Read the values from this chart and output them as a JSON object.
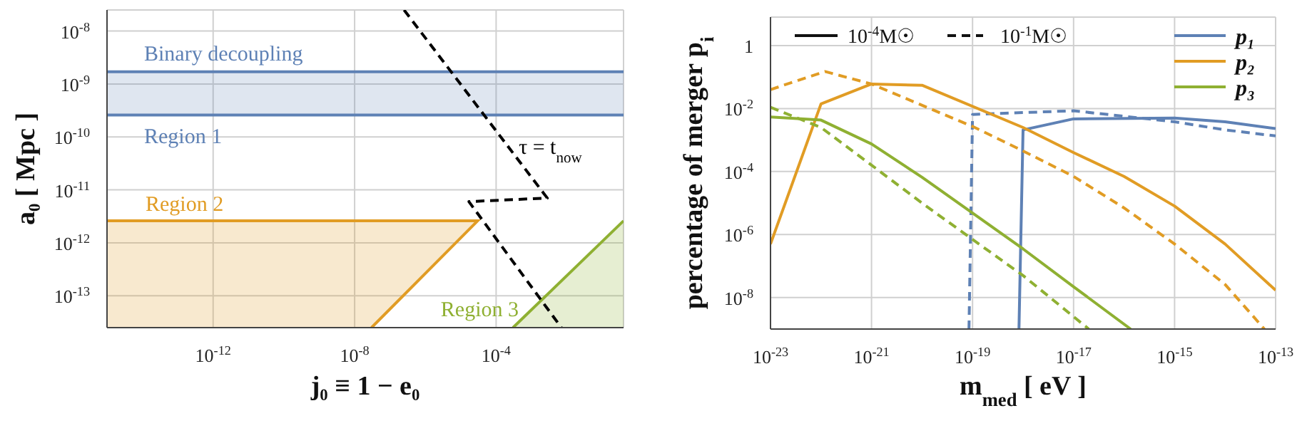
{
  "chart_data": [
    {
      "type": "area",
      "xlabel": "j₀ ≡ 1 − e₀",
      "ylabel": "a₀ [ Mpc ]",
      "log": "xy",
      "grid": true,
      "xlim": [
        1e-15,
        0.4
      ],
      "xticks": [
        {
          "value": 1e-12,
          "label": "10$^{-12}$"
        },
        {
          "value": 1e-08,
          "label": "10$^{-8}$"
        },
        {
          "value": 0.0001,
          "label": "10$^{-4}$"
        }
      ],
      "ylim": [
        2.5e-14,
        2.5e-08
      ],
      "yticks": [
        {
          "value": 1e-08,
          "label": "10$^{-8}$"
        },
        {
          "value": 1e-09,
          "label": "10$^{-9}$"
        },
        {
          "value": 1e-10,
          "label": "10$^{-10}$"
        },
        {
          "value": 1e-11,
          "label": "10$^{-11}$"
        },
        {
          "value": 1e-12,
          "label": "10$^{-12}$"
        },
        {
          "value": 1e-13,
          "label": "10$^{-13}$"
        }
      ],
      "bands": [
        {
          "axis": "y",
          "from": 2.6e-10,
          "to": 1.7e-09,
          "color": "#5e81b5"
        }
      ],
      "ref_lines": [
        {
          "axis": "y",
          "value": 1.7e-09,
          "label": "Binary decoupling",
          "color": "#5e81b5"
        },
        {
          "axis": "y",
          "value": 2.6e-10,
          "label": "Region 1",
          "color": "#5e81b5"
        }
      ],
      "series": [
        {
          "name": "Region 2",
          "color": "#e19c24",
          "x": [
            1e-15,
            3e-05,
            3e-08
          ],
          "values": [
            2.6e-12,
            2.6e-12,
            2.5e-14
          ]
        },
        {
          "name": "Region 3",
          "color": "#8fb032",
          "x": [
            0.0003,
            0.4
          ],
          "values": [
            2.5e-14,
            2.6e-12
          ]
        },
        {
          "name": "τ = t$_{now}$",
          "type": "line",
          "color": "#000000",
          "line_style": "dashed",
          "x": [
            2.5e-07,
            0.0028,
            1.7e-05,
            0.007
          ],
          "values": [
            2.5e-08,
            7e-12,
            6e-12,
            2.5e-14
          ]
        }
      ]
    },
    {
      "type": "line",
      "xlabel": "m$_{med}$ [ eV ]",
      "ylabel": "percentage of merger p$_{i}$",
      "log": "xy",
      "grid": true,
      "legend": "top right",
      "xlim": [
        1e-23,
        1e-13
      ],
      "xticks": [
        {
          "value": 1e-23,
          "label": "10$^{-23}$"
        },
        {
          "value": 1e-21,
          "label": "10$^{-21}$"
        },
        {
          "value": 1e-19,
          "label": "10$^{-19}$"
        },
        {
          "value": 1e-17,
          "label": "10$^{-17}$"
        },
        {
          "value": 1e-15,
          "label": "10$^{-15}$"
        },
        {
          "value": 1e-13,
          "label": "10$^{-13}$"
        }
      ],
      "ylim": [
        1e-09,
        8
      ],
      "yticks": [
        1,
        {
          "value": 0.01,
          "label": "10$^{-2}$"
        },
        {
          "value": 0.0001,
          "label": "10$^{-4}$"
        },
        {
          "value": 1e-06,
          "label": "10$^{-6}$"
        },
        {
          "value": 1e-08,
          "label": "10$^{-8}$"
        }
      ],
      "annotations": [
        "10$^{-4}$M☉",
        "10$^{-1}$M☉"
      ],
      "series": [
        {
          "name": "p₁",
          "color": "#5e81b5",
          "line_style": "solid",
          "x": [
            8.3e-19,
            1e-18,
            1e-17,
            1e-15,
            1e-14,
            1e-13
          ],
          "values": [
            1e-09,
            0.0021,
            0.0047,
            0.005,
            0.0038,
            0.0023
          ]
        },
        {
          "color": "#5e81b5",
          "line_style": "dashed",
          "x": [
            8.5e-20,
            1e-19,
            1e-17,
            1e-15,
            1e-14,
            1e-13
          ],
          "values": [
            1e-09,
            0.0065,
            0.0085,
            0.0038,
            0.0021,
            0.00135
          ]
        },
        {
          "name": "p₂",
          "color": "#e19c24",
          "line_style": "solid",
          "x": [
            1e-23,
            1e-22,
            1e-21,
            1e-20,
            1e-18,
            1e-17,
            1e-16,
            1e-15,
            1e-14,
            1e-13
          ],
          "values": [
            5e-07,
            0.014,
            0.06,
            0.055,
            0.0025,
            0.0004,
            7e-05,
            8e-06,
            5e-07,
            1.7e-08
          ]
        },
        {
          "color": "#e19c24",
          "line_style": "dashed",
          "x": [
            1e-23,
            1.2e-22,
            1e-21,
            1e-19,
            1e-18,
            1e-17,
            1e-16,
            1e-15,
            1e-14,
            6e-14
          ],
          "values": [
            0.04,
            0.15,
            0.06,
            0.0027,
            0.00045,
            7e-05,
            7e-06,
            5e-07,
            2.6e-08,
            1e-09
          ]
        },
        {
          "name": "p₃",
          "color": "#8fb032",
          "line_style": "solid",
          "x": [
            1e-23,
            1e-22,
            1e-21,
            1e-20,
            1e-19,
            1e-18,
            1e-17,
            1.35e-16
          ],
          "values": [
            0.0054,
            0.0043,
            0.00075,
            6.6e-05,
            4.8e-06,
            3.5e-07,
            2.2e-08,
            1e-09
          ]
        },
        {
          "color": "#8fb032",
          "line_style": "dashed",
          "x": [
            1e-23,
            1e-22,
            1e-21,
            1e-20,
            1e-19,
            1e-18,
            2e-17
          ],
          "values": [
            0.011,
            0.0025,
            0.00016,
            1e-05,
            7e-07,
            5e-08,
            1e-09
          ]
        }
      ]
    }
  ]
}
